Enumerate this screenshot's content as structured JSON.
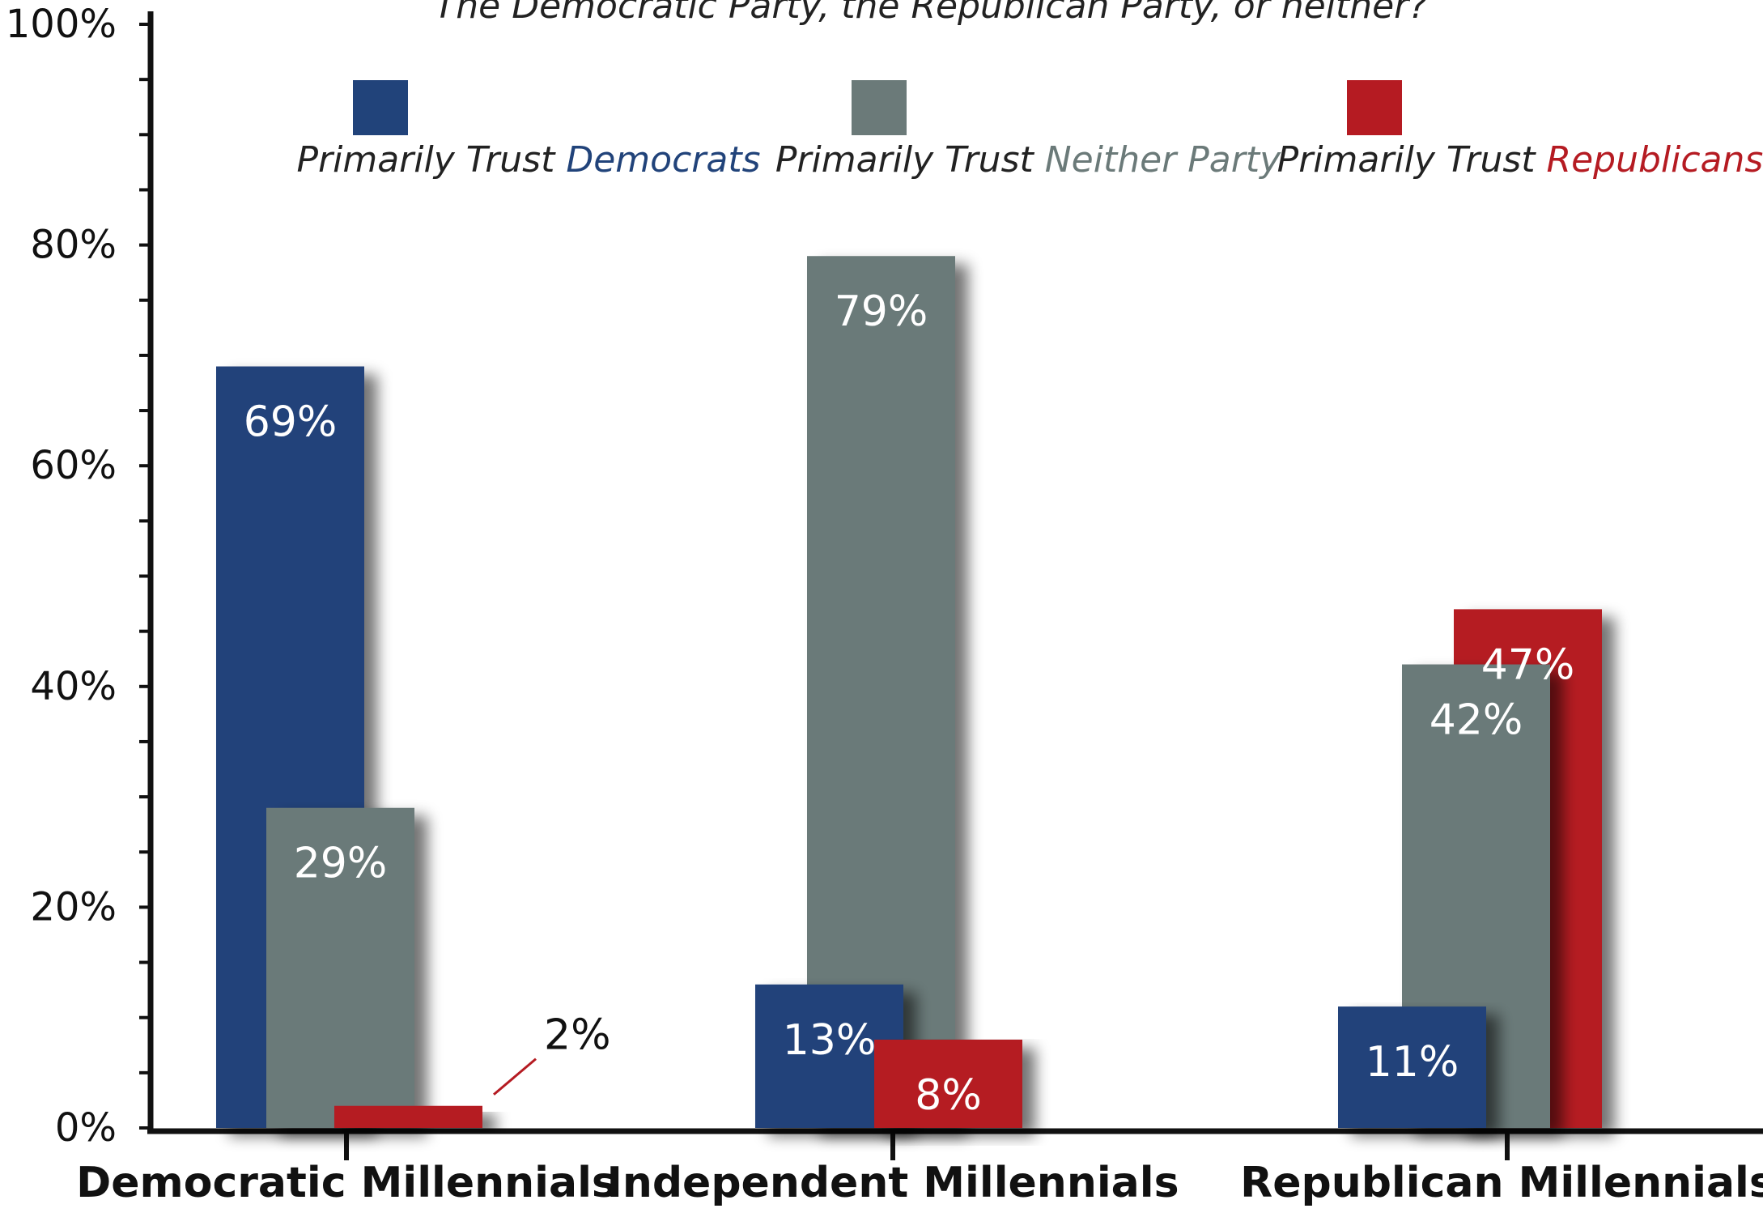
{
  "chart_data": {
    "type": "bar",
    "subtitle": "The Democratic Party, the Republican Party, or neither?",
    "categories": [
      "Democratic Millennials",
      "Independent Millennials",
      "Republican Millennials"
    ],
    "series": [
      {
        "name": "Democrats",
        "legend_prefix": "Primarily Trust ",
        "legend_accent": "Democrats",
        "color": "#21437a",
        "values": [
          69,
          13,
          11
        ]
      },
      {
        "name": "Neither Party",
        "legend_prefix": "Primarily Trust ",
        "legend_accent": "Neither Party",
        "color": "#6b7a79",
        "values": [
          29,
          79,
          42
        ]
      },
      {
        "name": "Republicans",
        "legend_prefix": "Primarily Trust ",
        "legend_accent": "Republicans",
        "color": "#b51b22",
        "values": [
          2,
          8,
          47
        ]
      }
    ],
    "data_labels": [
      [
        "69%",
        "29%",
        "2%"
      ],
      [
        "13%",
        "79%",
        "8%"
      ],
      [
        "11%",
        "42%",
        "47%"
      ]
    ],
    "y_ticks": [
      "0%",
      "20%",
      "40%",
      "60%",
      "80%",
      "100%"
    ],
    "ylim": [
      0,
      100
    ],
    "legend_position": "top",
    "grid": false
  }
}
